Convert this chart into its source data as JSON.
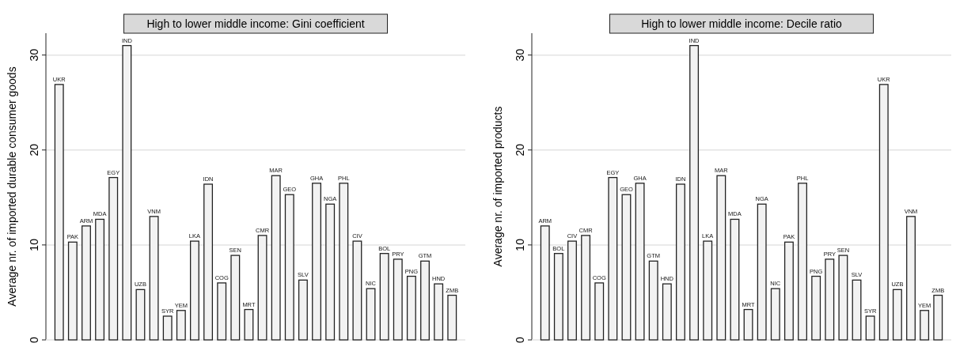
{
  "chart_data": [
    {
      "type": "bar",
      "title": "High to lower middle income: Gini coefficient",
      "ylabel": "Average nr. of imported durable consumer goods",
      "categories": [
        "UKR",
        "PAK",
        "ARM",
        "MDA",
        "EGY",
        "IND",
        "UZB",
        "VNM",
        "SYR",
        "YEM",
        "LKA",
        "IDN",
        "COG",
        "SEN",
        "MRT",
        "CMR",
        "MAR",
        "GEO",
        "SLV",
        "GHA",
        "NGA",
        "PHL",
        "CIV",
        "NIC",
        "BOL",
        "PRY",
        "PNG",
        "GTM",
        "HND",
        "ZMB"
      ],
      "values": [
        26.9,
        10.3,
        12.0,
        12.7,
        17.1,
        31.0,
        5.3,
        13.0,
        2.5,
        3.1,
        10.4,
        16.4,
        6.0,
        8.9,
        3.2,
        11.0,
        17.3,
        15.3,
        6.3,
        16.5,
        14.3,
        16.5,
        10.4,
        5.4,
        9.1,
        8.5,
        6.7,
        8.3,
        5.9,
        4.7
      ],
      "color": "#f2f2f2",
      "ylim": [
        0,
        32.3
      ],
      "yticks": [
        0,
        10,
        20,
        30
      ],
      "grid": "y",
      "tick_labels": "y"
    },
    {
      "type": "bar",
      "title": "High to lower middle income: Decile ratio",
      "ylabel": "Average nr. of imported products",
      "categories": [
        "ARM",
        "BOL",
        "CIV",
        "CMR",
        "COG",
        "EGY",
        "GEO",
        "GHA",
        "GTM",
        "HND",
        "IDN",
        "IND",
        "LKA",
        "MAR",
        "MDA",
        "MRT",
        "NGA",
        "NIC",
        "PAK",
        "PHL",
        "PNG",
        "PRY",
        "SEN",
        "SLV",
        "SYR",
        "UKR",
        "UZB",
        "VNM",
        "YEM",
        "ZMB"
      ],
      "values": [
        12.0,
        9.1,
        10.4,
        11.0,
        6.0,
        17.1,
        15.3,
        16.5,
        8.3,
        5.9,
        16.4,
        31.0,
        10.4,
        17.3,
        12.7,
        3.2,
        14.3,
        5.4,
        10.3,
        16.5,
        6.7,
        8.5,
        8.9,
        6.3,
        2.5,
        26.9,
        5.3,
        13.0,
        3.1,
        4.7
      ],
      "color": "#f2f2f2",
      "ylim": [
        0,
        32.3
      ],
      "yticks": [
        0,
        10,
        20,
        30
      ],
      "grid": "y",
      "tick_labels": "y"
    }
  ]
}
